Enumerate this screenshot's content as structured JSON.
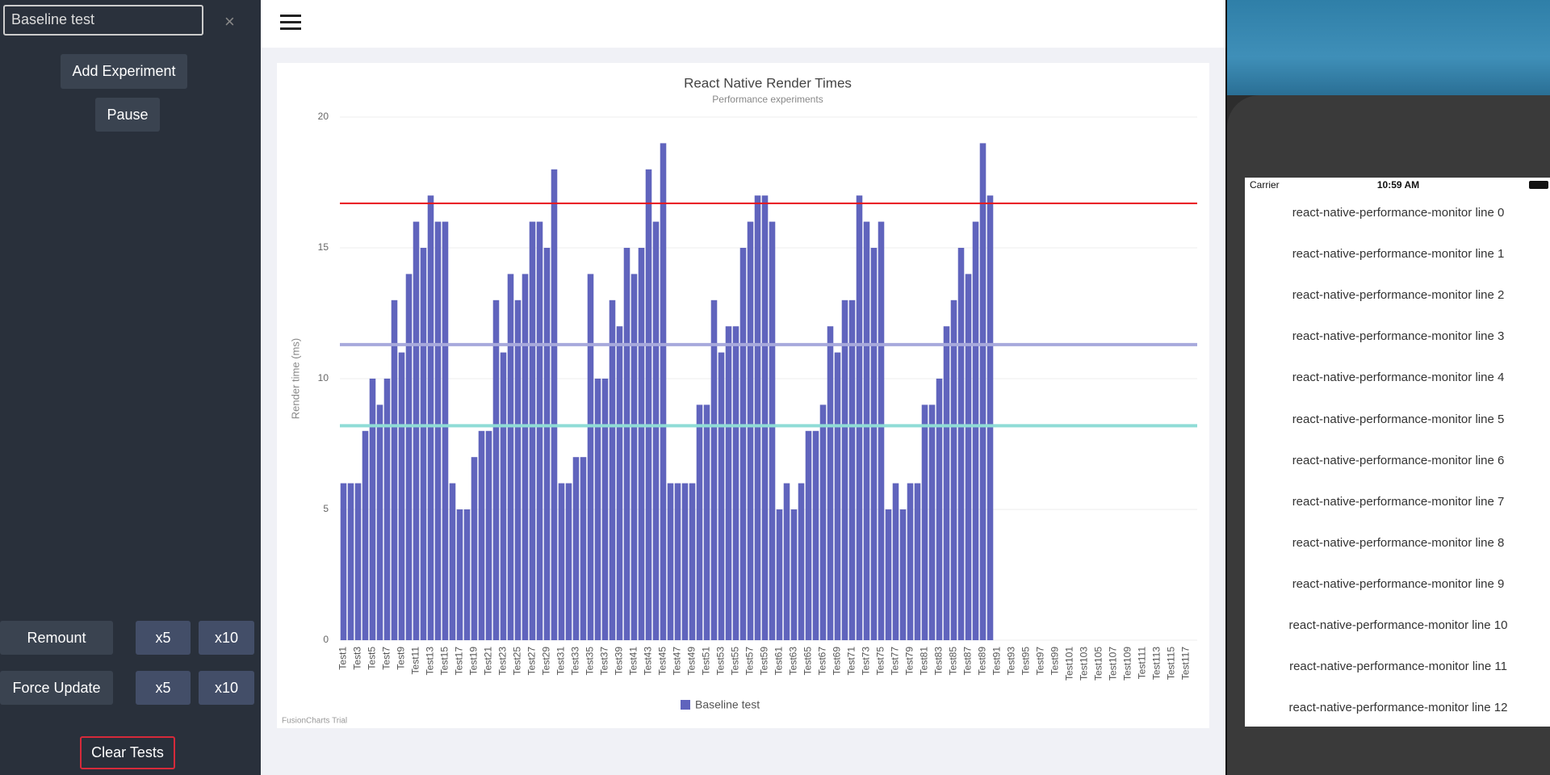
{
  "sidebar": {
    "input_value": "Baseline test",
    "close": "×",
    "add_button": "Add Experiment",
    "pause_button": "Pause",
    "remount_button": "Remount",
    "force_update_button": "Force Update",
    "x5": "x5",
    "x10": "x10",
    "clear_button": "Clear Tests"
  },
  "chart_data": {
    "type": "bar",
    "title": "React Native Render Times",
    "subtitle": "Performance experiments",
    "y_label": "Render time (ms)",
    "footer": "FusionCharts Trial",
    "categories": [
      "Test1",
      null,
      "Test3",
      null,
      "Test5",
      null,
      "Test7",
      null,
      "Test9",
      null,
      "Test11",
      null,
      "Test13",
      null,
      "Test15",
      null,
      "Test17",
      null,
      "Test19",
      null,
      "Test21",
      null,
      "Test23",
      null,
      "Test25",
      null,
      "Test27",
      null,
      "Test29",
      null,
      "Test31",
      null,
      "Test33",
      null,
      "Test35",
      null,
      "Test37",
      null,
      "Test39",
      null,
      "Test41",
      null,
      "Test43",
      null,
      "Test45",
      null,
      "Test47",
      null,
      "Test49",
      null,
      "Test51",
      null,
      "Test53",
      null,
      "Test55",
      null,
      "Test57",
      null,
      "Test59",
      null,
      "Test61",
      null,
      "Test63",
      null,
      "Test65",
      null,
      "Test67",
      null,
      "Test69",
      null,
      "Test71",
      null,
      "Test73",
      null,
      "Test75",
      null,
      "Test77",
      null,
      "Test79",
      null,
      "Test81",
      null,
      "Test83",
      null,
      "Test85",
      null,
      "Test87",
      null,
      "Test89",
      null,
      "Test91",
      null,
      "Test93",
      null,
      "Test95",
      null,
      "Test97",
      null,
      "Test99",
      null,
      "Test101",
      null,
      "Test103",
      null,
      "Test105",
      null,
      "Test107",
      null,
      "Test109",
      null,
      "Test111",
      null,
      "Test113",
      null,
      "Test115",
      null,
      "Test117",
      null
    ],
    "series": [
      {
        "name": "Baseline test",
        "color": "#6064bd",
        "values": [
          6,
          6,
          6,
          8,
          10,
          9,
          10,
          13,
          11,
          14,
          16,
          15,
          17,
          16,
          16,
          6,
          5,
          5,
          7,
          8,
          8,
          13,
          11,
          14,
          13,
          14,
          16,
          16,
          15,
          18,
          6,
          6,
          7,
          7,
          14,
          10,
          10,
          13,
          12,
          15,
          14,
          15,
          18,
          16,
          19,
          6,
          6,
          6,
          6,
          9,
          9,
          13,
          11,
          12,
          12,
          15,
          16,
          17,
          17,
          16,
          5,
          6,
          5,
          6,
          8,
          8,
          9,
          12,
          11,
          13,
          13,
          17,
          16,
          15,
          16,
          5,
          6,
          5,
          6,
          6,
          9,
          9,
          10,
          12,
          13,
          15,
          14,
          16,
          19,
          17,
          null,
          null,
          null,
          null,
          null,
          null,
          null,
          null,
          null,
          null,
          null,
          null,
          null,
          null,
          null,
          null,
          null,
          null,
          null,
          null,
          null,
          null,
          null,
          null,
          null,
          null,
          null,
          null
        ]
      }
    ],
    "trend_lines": [
      {
        "value": 16.7,
        "color": "#e8161b"
      },
      {
        "value": 11.3,
        "color": "#a7a9dc"
      },
      {
        "value": 8.2,
        "color": "#8fdcd6"
      }
    ],
    "ylim": [
      0,
      20
    ],
    "yticks": [
      0,
      5,
      10,
      15,
      20
    ],
    "grid": true
  },
  "phone": {
    "carrier": "Carrier",
    "time": "10:59 AM",
    "lines": [
      "react-native-performance-monitor line 0",
      "react-native-performance-monitor line 1",
      "react-native-performance-monitor line 2",
      "react-native-performance-monitor line 3",
      "react-native-performance-monitor line 4",
      "react-native-performance-monitor line 5",
      "react-native-performance-monitor line 6",
      "react-native-performance-monitor line 7",
      "react-native-performance-monitor line 8",
      "react-native-performance-monitor line 9",
      "react-native-performance-monitor line 10",
      "react-native-performance-monitor line 11",
      "react-native-performance-monitor line 12"
    ]
  }
}
